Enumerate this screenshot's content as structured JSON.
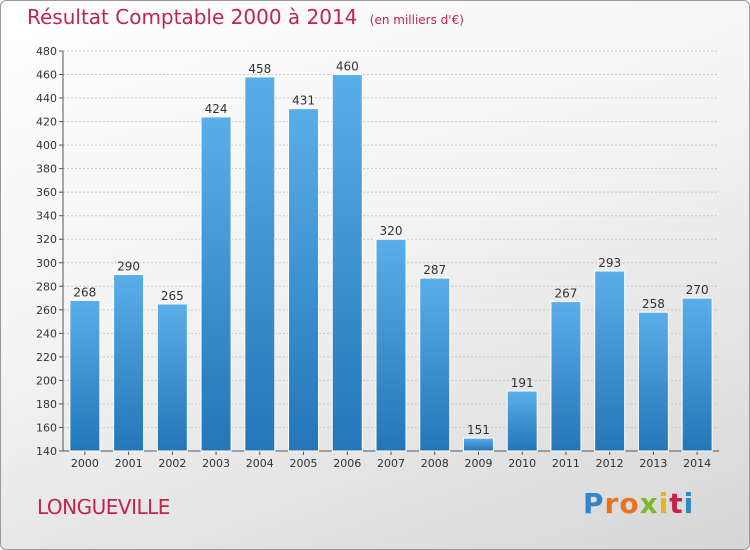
{
  "chart_data": {
    "type": "bar",
    "title": "Résultat Comptable 2000 à 2014",
    "subtitle": "(en milliers d'€)",
    "categories": [
      "2000",
      "2001",
      "2002",
      "2003",
      "2004",
      "2005",
      "2006",
      "2007",
      "2008",
      "2009",
      "2010",
      "2011",
      "2012",
      "2013",
      "2014"
    ],
    "values": [
      268,
      290,
      265,
      424,
      458,
      431,
      460,
      320,
      287,
      151,
      191,
      267,
      293,
      258,
      270
    ],
    "ylim": [
      140,
      480
    ],
    "yticks": [
      140,
      160,
      180,
      200,
      220,
      240,
      260,
      280,
      300,
      320,
      340,
      360,
      380,
      400,
      420,
      440,
      460,
      480
    ],
    "grid": true,
    "xlabel": "",
    "ylabel": "",
    "bar_color_top": "#5aaee8",
    "bar_color_bottom": "#2376b8"
  },
  "footer": {
    "commune": "LONGUEVILLE",
    "logo_letters": [
      {
        "char": "P",
        "color": "#2f86c8"
      },
      {
        "char": "r",
        "color": "#e8731f"
      },
      {
        "char": "o",
        "color": "#e8731f"
      },
      {
        "char": "x",
        "color": "#7cb928"
      },
      {
        "char": "i",
        "color": "#e8b21f"
      },
      {
        "char": "t",
        "color": "#c0244f"
      },
      {
        "char": "i",
        "color": "#2f86c8"
      }
    ]
  }
}
